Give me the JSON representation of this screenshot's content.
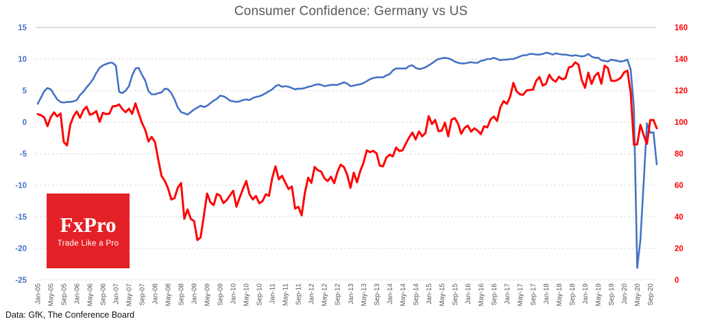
{
  "footer": {
    "source": "Data: GfK, The Conference Board"
  },
  "logo": {
    "brand": "FxPro",
    "tagline": "Trade Like a Pro",
    "background": "#E32126",
    "text_color": "#ffffff"
  },
  "chart_data": {
    "type": "line",
    "title": "Consumer Confidence: Germany vs US",
    "xlabel": "",
    "ylabel_left": "",
    "ylabel_right": "",
    "grid": "horizontal-dashed",
    "legend": "none",
    "x_unit": "month",
    "x_start": "Jan-05",
    "x_end": "Nov-20",
    "x_tick_every_months": 4,
    "x_tick_labels": [
      "Jan-05",
      "May-05",
      "Sep-05",
      "Jan-06",
      "May-06",
      "Sep-06",
      "Jan-07",
      "May-07",
      "Sep-07",
      "Jan-08",
      "May-08",
      "Sep-08",
      "Jan-09",
      "May-09",
      "Sep-09",
      "Jan-10",
      "May-10",
      "Sep-10",
      "Jan-11",
      "May-11",
      "Sep-11",
      "Jan-12",
      "May-12",
      "Sep-12",
      "Jan-13",
      "May-13",
      "Sep-13",
      "Jan-14",
      "May-14",
      "Sep-14",
      "Jan-15",
      "May-15",
      "Sep-15",
      "Jan-16",
      "May-16",
      "Sep-16",
      "Jan-17",
      "May-17",
      "Sep-17",
      "Jan-18",
      "May-18",
      "Sep-18",
      "Jan-19",
      "May-19",
      "Sep-19",
      "Jan-20",
      "May-20",
      "Sep-20"
    ],
    "left_axis": {
      "min": -25,
      "max": 15,
      "ticks": [
        15,
        10,
        5,
        0,
        -5,
        -10,
        -15,
        -20,
        -25
      ],
      "color": "#4472C4"
    },
    "right_axis": {
      "min": 0,
      "max": 160,
      "ticks": [
        160,
        140,
        120,
        100,
        80,
        60,
        40,
        20,
        0
      ],
      "color": "#FF0000"
    },
    "series": [
      {
        "name": "Germany GfK consumer climate (left axis)",
        "axis": "left",
        "color": "#4472C4",
        "stroke_width": 2.6,
        "values": [
          2.9,
          3.9,
          4.9,
          5.4,
          5.2,
          4.4,
          3.6,
          3.2,
          3.1,
          3.2,
          3.2,
          3.3,
          3.5,
          4.3,
          4.8,
          5.5,
          6.1,
          6.8,
          7.8,
          8.6,
          9.0,
          9.2,
          9.4,
          9.4,
          8.9,
          4.8,
          4.6,
          5.0,
          5.7,
          7.4,
          8.5,
          8.6,
          7.5,
          6.6,
          4.9,
          4.4,
          4.4,
          4.6,
          4.7,
          5.3,
          5.2,
          4.6,
          3.6,
          2.3,
          1.6,
          1.4,
          1.2,
          1.6,
          2.0,
          2.3,
          2.6,
          2.4,
          2.6,
          3.0,
          3.4,
          3.7,
          4.2,
          4.1,
          3.8,
          3.4,
          3.3,
          3.2,
          3.3,
          3.5,
          3.6,
          3.5,
          3.8,
          4.0,
          4.1,
          4.3,
          4.6,
          4.9,
          5.2,
          5.7,
          5.9,
          5.6,
          5.7,
          5.6,
          5.4,
          5.2,
          5.3,
          5.3,
          5.4,
          5.6,
          5.7,
          5.9,
          6.0,
          5.9,
          5.7,
          5.8,
          5.9,
          5.9,
          5.9,
          6.1,
          6.3,
          6.1,
          5.7,
          5.8,
          5.9,
          6.0,
          6.2,
          6.5,
          6.8,
          7.0,
          7.1,
          7.1,
          7.1,
          7.4,
          7.6,
          8.2,
          8.5,
          8.5,
          8.5,
          8.5,
          8.9,
          9.0,
          8.6,
          8.4,
          8.5,
          8.7,
          9.0,
          9.3,
          9.7,
          10.0,
          10.1,
          10.2,
          10.1,
          9.9,
          9.6,
          9.4,
          9.3,
          9.3,
          9.4,
          9.5,
          9.4,
          9.4,
          9.7,
          9.8,
          10.0,
          10.0,
          10.2,
          10.0,
          9.8,
          9.9,
          9.9,
          10.0,
          10.0,
          10.2,
          10.4,
          10.6,
          10.6,
          10.8,
          10.8,
          10.7,
          10.7,
          10.8,
          11.0,
          10.9,
          10.7,
          10.9,
          10.8,
          10.7,
          10.7,
          10.6,
          10.5,
          10.6,
          10.5,
          10.4,
          10.5,
          10.8,
          10.4,
          10.2,
          10.2,
          9.8,
          9.7,
          9.6,
          9.9,
          9.8,
          9.7,
          9.6,
          9.7,
          9.9,
          8.3,
          2.3,
          -23.1,
          -18.6,
          -9.4,
          -0.2,
          -1.7,
          -1.6,
          -6.7
        ]
      },
      {
        "name": "US Conference Board consumer confidence (right axis)",
        "axis": "right",
        "color": "#FF0000",
        "stroke_width": 3,
        "values": [
          105.1,
          104.4,
          103.0,
          97.5,
          103.1,
          106.2,
          103.6,
          105.5,
          87.5,
          85.2,
          98.3,
          103.8,
          106.8,
          102.7,
          107.5,
          109.8,
          104.7,
          105.4,
          107.0,
          100.2,
          105.9,
          105.1,
          105.3,
          110.0,
          110.2,
          111.2,
          108.2,
          106.3,
          108.5,
          105.3,
          111.9,
          105.6,
          99.5,
          95.2,
          87.8,
          90.6,
          87.3,
          76.4,
          65.9,
          62.8,
          58.1,
          51.0,
          51.9,
          58.5,
          61.4,
          38.8,
          44.7,
          38.6,
          37.4,
          25.3,
          26.9,
          40.8,
          54.8,
          49.3,
          47.4,
          54.5,
          53.4,
          48.7,
          50.6,
          53.6,
          56.5,
          46.4,
          52.3,
          57.7,
          62.7,
          54.3,
          51.0,
          53.2,
          48.6,
          49.9,
          54.3,
          53.3,
          64.8,
          72.0,
          63.8,
          66.0,
          61.7,
          57.6,
          59.2,
          45.2,
          46.4,
          40.9,
          55.2,
          64.8,
          61.5,
          71.6,
          69.5,
          68.7,
          64.4,
          62.7,
          65.4,
          61.3,
          68.4,
          73.1,
          71.5,
          66.7,
          58.4,
          68.0,
          61.9,
          69.0,
          74.3,
          82.1,
          81.0,
          81.8,
          80.2,
          72.4,
          72.0,
          77.5,
          79.4,
          78.3,
          83.9,
          81.7,
          82.2,
          86.4,
          90.3,
          93.4,
          89.0,
          94.1,
          91.0,
          93.1,
          103.8,
          98.8,
          101.4,
          94.3,
          94.6,
          99.8,
          91.0,
          101.5,
          102.6,
          99.1,
          92.6,
          96.3,
          97.8,
          94.0,
          96.1,
          94.7,
          92.4,
          97.4,
          96.7,
          101.8,
          103.5,
          100.8,
          109.4,
          113.3,
          111.6,
          116.1,
          124.9,
          119.4,
          117.6,
          117.3,
          120.0,
          120.4,
          120.6,
          126.2,
          128.6,
          123.1,
          124.3,
          130.0,
          127.0,
          125.6,
          128.8,
          127.1,
          127.9,
          134.7,
          135.3,
          137.9,
          136.4,
          126.6,
          121.7,
          131.4,
          124.2,
          129.2,
          131.3,
          124.3,
          135.8,
          134.2,
          126.3,
          126.1,
          126.8,
          128.2,
          131.6,
          132.6,
          118.8,
          85.7,
          85.9,
          98.3,
          91.7,
          86.3,
          101.3,
          101.4,
          96.1
        ]
      }
    ]
  }
}
